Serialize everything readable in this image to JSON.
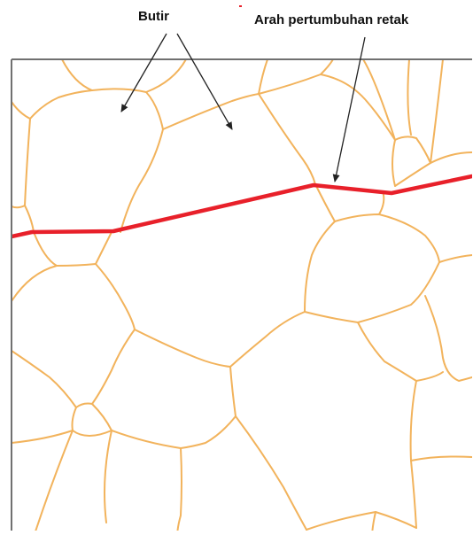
{
  "labels": {
    "grain": "Butir",
    "crack_direction": "Arah pertumbuhan retak"
  },
  "colors": {
    "grain_boundary": "#f2b35c",
    "crack": "#e8202a",
    "frame": "#707070",
    "arrow": "#222222",
    "text": "#111111"
  }
}
